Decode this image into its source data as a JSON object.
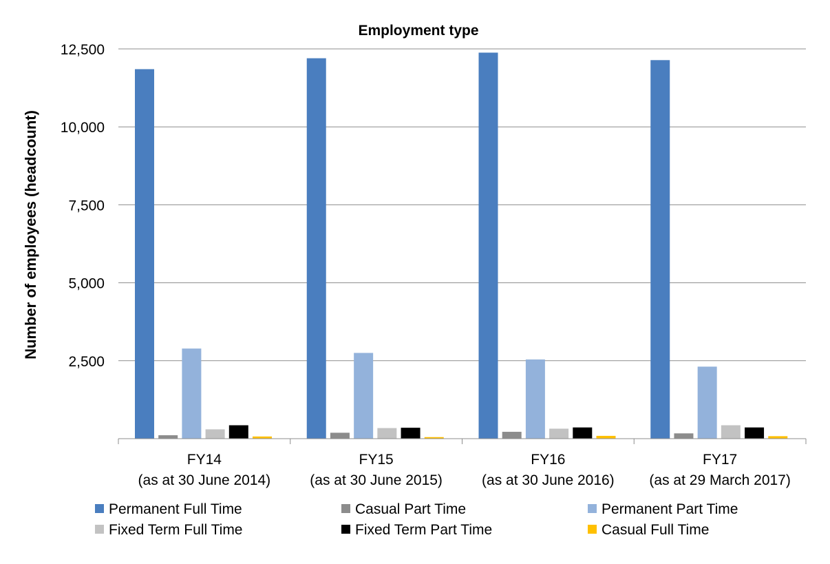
{
  "chart_data": {
    "type": "bar",
    "title": "Employment type",
    "xlabel": "",
    "ylabel": "Number of employees (headcount)",
    "ylim": [
      0,
      12500
    ],
    "yticks": [
      "2,500",
      "5,000",
      "7,500",
      "10,000",
      "12,500"
    ],
    "ytick_values": [
      2500,
      5000,
      7500,
      10000,
      12500
    ],
    "grid": true,
    "legend_position": "bottom",
    "categories": [
      {
        "line1": "FY14",
        "line2": "(as at 30 June 2014)"
      },
      {
        "line1": "FY15",
        "line2": "(as at 30 June 2015)"
      },
      {
        "line1": "FY16",
        "line2": "(as at 30 June 2016)"
      },
      {
        "line1": "FY17",
        "line2": "(as at 29 March 2017)"
      }
    ],
    "series": [
      {
        "name": "Permanent Full Time",
        "color": "#4a7ebf",
        "values": [
          11850,
          12200,
          12380,
          12140
        ]
      },
      {
        "name": "Casual Part Time",
        "color": "#8c8c8c",
        "values": [
          110,
          190,
          220,
          170
        ]
      },
      {
        "name": "Permanent Part Time",
        "color": "#93b2db",
        "values": [
          2890,
          2750,
          2540,
          2310
        ]
      },
      {
        "name": "Fixed Term Full Time",
        "color": "#c2c2c2",
        "values": [
          300,
          340,
          320,
          430
        ]
      },
      {
        "name": "Fixed Term Part Time",
        "color": "#000000",
        "values": [
          430,
          350,
          360,
          360
        ]
      },
      {
        "name": "Casual Full Time",
        "color": "#ffc000",
        "values": [
          70,
          50,
          90,
          80
        ]
      }
    ]
  }
}
